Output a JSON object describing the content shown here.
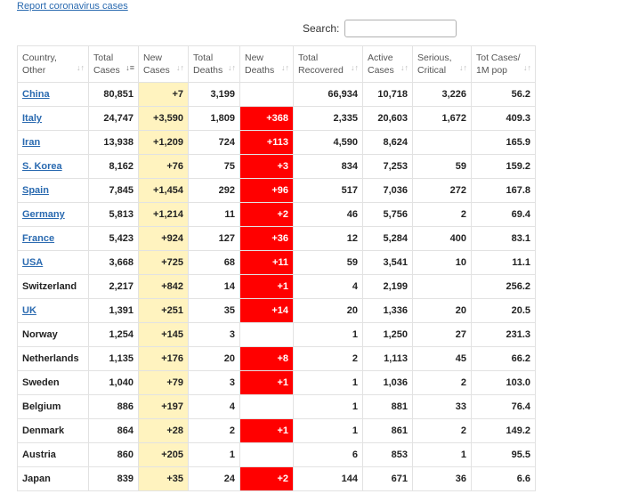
{
  "report_link": "Report coronavirus cases",
  "search": {
    "label": "Search:",
    "value": ""
  },
  "colors": {
    "new_cases_bg": "#fff3bf",
    "new_deaths_bg": "#ff0000",
    "link": "#2a6ab0"
  },
  "table": {
    "headers": [
      {
        "line1": "Country,",
        "line2": "Other"
      },
      {
        "line1": "Total",
        "line2": "Cases"
      },
      {
        "line1": "New",
        "line2": "Cases"
      },
      {
        "line1": "Total",
        "line2": "Deaths"
      },
      {
        "line1": "New",
        "line2": "Deaths"
      },
      {
        "line1": "Total",
        "line2": "Recovered"
      },
      {
        "line1": "Active",
        "line2": "Cases"
      },
      {
        "line1": "Serious,",
        "line2": "Critical"
      },
      {
        "line1": "Tot Cases/",
        "line2": "1M pop"
      }
    ],
    "sort_icons": [
      "sort-icon",
      "sort-desc-icon",
      "sort-icon",
      "sort-icon",
      "sort-icon",
      "sort-icon",
      "sort-icon",
      "sort-icon",
      "sort-icon"
    ],
    "rows": [
      {
        "country": "China",
        "link": true,
        "total_cases": "80,851",
        "new_cases": "+7",
        "total_deaths": "3,199",
        "new_deaths": "",
        "total_recovered": "66,934",
        "active_cases": "10,718",
        "serious_critical": "3,226",
        "per_million": "56.2"
      },
      {
        "country": "Italy",
        "link": true,
        "total_cases": "24,747",
        "new_cases": "+3,590",
        "total_deaths": "1,809",
        "new_deaths": "+368",
        "total_recovered": "2,335",
        "active_cases": "20,603",
        "serious_critical": "1,672",
        "per_million": "409.3"
      },
      {
        "country": "Iran",
        "link": true,
        "total_cases": "13,938",
        "new_cases": "+1,209",
        "total_deaths": "724",
        "new_deaths": "+113",
        "total_recovered": "4,590",
        "active_cases": "8,624",
        "serious_critical": "",
        "per_million": "165.9"
      },
      {
        "country": "S. Korea",
        "link": true,
        "total_cases": "8,162",
        "new_cases": "+76",
        "total_deaths": "75",
        "new_deaths": "+3",
        "total_recovered": "834",
        "active_cases": "7,253",
        "serious_critical": "59",
        "per_million": "159.2"
      },
      {
        "country": "Spain",
        "link": true,
        "total_cases": "7,845",
        "new_cases": "+1,454",
        "total_deaths": "292",
        "new_deaths": "+96",
        "total_recovered": "517",
        "active_cases": "7,036",
        "serious_critical": "272",
        "per_million": "167.8"
      },
      {
        "country": "Germany",
        "link": true,
        "total_cases": "5,813",
        "new_cases": "+1,214",
        "total_deaths": "11",
        "new_deaths": "+2",
        "total_recovered": "46",
        "active_cases": "5,756",
        "serious_critical": "2",
        "per_million": "69.4"
      },
      {
        "country": "France",
        "link": true,
        "total_cases": "5,423",
        "new_cases": "+924",
        "total_deaths": "127",
        "new_deaths": "+36",
        "total_recovered": "12",
        "active_cases": "5,284",
        "serious_critical": "400",
        "per_million": "83.1"
      },
      {
        "country": "USA",
        "link": true,
        "total_cases": "3,668",
        "new_cases": "+725",
        "total_deaths": "68",
        "new_deaths": "+11",
        "total_recovered": "59",
        "active_cases": "3,541",
        "serious_critical": "10",
        "per_million": "11.1"
      },
      {
        "country": "Switzerland",
        "link": false,
        "total_cases": "2,217",
        "new_cases": "+842",
        "total_deaths": "14",
        "new_deaths": "+1",
        "total_recovered": "4",
        "active_cases": "2,199",
        "serious_critical": "",
        "per_million": "256.2"
      },
      {
        "country": "UK",
        "link": true,
        "total_cases": "1,391",
        "new_cases": "+251",
        "total_deaths": "35",
        "new_deaths": "+14",
        "total_recovered": "20",
        "active_cases": "1,336",
        "serious_critical": "20",
        "per_million": "20.5"
      },
      {
        "country": "Norway",
        "link": false,
        "total_cases": "1,254",
        "new_cases": "+145",
        "total_deaths": "3",
        "new_deaths": "",
        "total_recovered": "1",
        "active_cases": "1,250",
        "serious_critical": "27",
        "per_million": "231.3"
      },
      {
        "country": "Netherlands",
        "link": false,
        "total_cases": "1,135",
        "new_cases": "+176",
        "total_deaths": "20",
        "new_deaths": "+8",
        "total_recovered": "2",
        "active_cases": "1,113",
        "serious_critical": "45",
        "per_million": "66.2"
      },
      {
        "country": "Sweden",
        "link": false,
        "total_cases": "1,040",
        "new_cases": "+79",
        "total_deaths": "3",
        "new_deaths": "+1",
        "total_recovered": "1",
        "active_cases": "1,036",
        "serious_critical": "2",
        "per_million": "103.0"
      },
      {
        "country": "Belgium",
        "link": false,
        "total_cases": "886",
        "new_cases": "+197",
        "total_deaths": "4",
        "new_deaths": "",
        "total_recovered": "1",
        "active_cases": "881",
        "serious_critical": "33",
        "per_million": "76.4"
      },
      {
        "country": "Denmark",
        "link": false,
        "total_cases": "864",
        "new_cases": "+28",
        "total_deaths": "2",
        "new_deaths": "+1",
        "total_recovered": "1",
        "active_cases": "861",
        "serious_critical": "2",
        "per_million": "149.2"
      },
      {
        "country": "Austria",
        "link": false,
        "total_cases": "860",
        "new_cases": "+205",
        "total_deaths": "1",
        "new_deaths": "",
        "total_recovered": "6",
        "active_cases": "853",
        "serious_critical": "1",
        "per_million": "95.5"
      },
      {
        "country": "Japan",
        "link": false,
        "total_cases": "839",
        "new_cases": "+35",
        "total_deaths": "24",
        "new_deaths": "+2",
        "total_recovered": "144",
        "active_cases": "671",
        "serious_critical": "36",
        "per_million": "6.6"
      }
    ]
  }
}
